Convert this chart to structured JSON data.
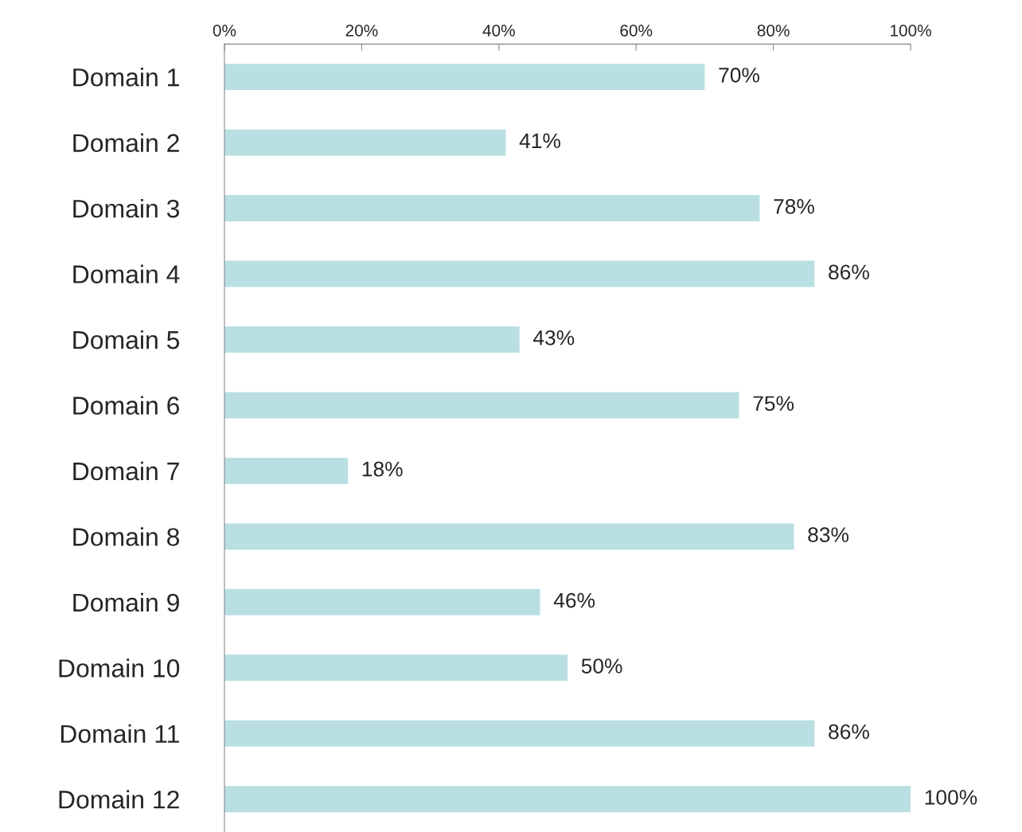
{
  "chart_data": {
    "type": "bar",
    "orientation": "horizontal",
    "categories": [
      "Domain 1",
      "Domain 2",
      "Domain 3",
      "Domain 4",
      "Domain 5",
      "Domain 6",
      "Domain 7",
      "Domain 8",
      "Domain 9",
      "Domain 10",
      "Domain 11",
      "Domain 12"
    ],
    "values": [
      70,
      41,
      78,
      86,
      43,
      75,
      18,
      83,
      46,
      50,
      86,
      100
    ],
    "value_labels": [
      "70%",
      "41%",
      "78%",
      "86%",
      "43%",
      "75%",
      "18%",
      "83%",
      "46%",
      "50%",
      "86%",
      "100%"
    ],
    "color": "#b9dfe2",
    "xlim": [
      0,
      100
    ],
    "xticks": [
      {
        "value": 0,
        "label": "0%"
      },
      {
        "value": 20,
        "label": "20%"
      },
      {
        "value": 40,
        "label": "40%"
      },
      {
        "value": 60,
        "label": "60%"
      },
      {
        "value": 80,
        "label": "80%"
      },
      {
        "value": 100,
        "label": "100%"
      }
    ],
    "grid": false,
    "legend": false
  }
}
